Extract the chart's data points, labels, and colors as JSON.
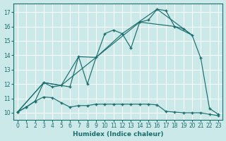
{
  "xlabel": "Humidex (Indice chaleur)",
  "bg_color": "#cce9e9",
  "grid_color": "#ffffff",
  "line_color": "#1a6e6e",
  "xlim": [
    -0.5,
    23.5
  ],
  "ylim": [
    9.5,
    17.6
  ],
  "xticks": [
    0,
    1,
    2,
    3,
    4,
    5,
    6,
    7,
    8,
    9,
    10,
    11,
    12,
    13,
    14,
    15,
    16,
    17,
    18,
    19,
    20,
    21,
    22,
    23
  ],
  "yticks": [
    10,
    11,
    12,
    13,
    14,
    15,
    16,
    17
  ],
  "curve_upper_x": [
    0,
    1,
    2,
    3,
    4,
    5,
    6,
    7,
    8,
    9,
    10,
    11,
    12,
    13,
    14,
    15,
    16,
    17,
    18,
    19,
    20,
    21,
    22,
    23
  ],
  "curve_upper_y": [
    10.05,
    10.4,
    10.8,
    12.1,
    11.8,
    11.9,
    11.8,
    13.9,
    12.0,
    13.85,
    15.5,
    15.75,
    15.5,
    14.5,
    16.3,
    16.45,
    17.2,
    17.1,
    16.0,
    15.85,
    15.4,
    13.8,
    10.3,
    9.9
  ],
  "curve_lower_x": [
    0,
    1,
    2,
    3,
    4,
    5,
    6,
    7,
    8,
    9,
    10,
    11,
    12,
    13,
    14,
    15,
    16,
    17,
    18,
    19,
    20,
    21,
    22,
    23
  ],
  "curve_lower_y": [
    10.05,
    10.4,
    10.8,
    11.1,
    11.05,
    10.7,
    10.4,
    10.5,
    10.5,
    10.6,
    10.6,
    10.6,
    10.6,
    10.6,
    10.6,
    10.6,
    10.55,
    10.1,
    10.05,
    10.0,
    10.0,
    10.0,
    9.9,
    9.8
  ],
  "diag1_x": [
    0,
    3,
    5,
    7,
    9,
    12,
    16,
    20
  ],
  "diag1_y": [
    10.05,
    12.1,
    11.9,
    13.9,
    13.85,
    15.5,
    17.2,
    15.4
  ],
  "diag2_x": [
    0,
    3,
    5,
    9,
    14,
    18,
    20
  ],
  "diag2_y": [
    10.05,
    12.1,
    11.9,
    13.85,
    16.3,
    16.0,
    15.4
  ]
}
